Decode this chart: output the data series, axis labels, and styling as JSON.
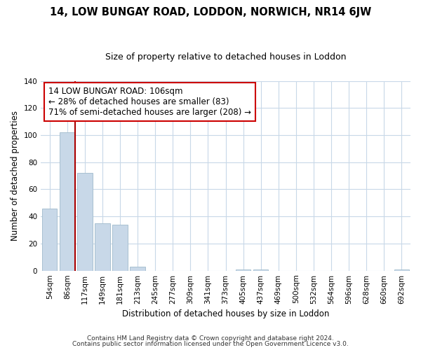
{
  "title": "14, LOW BUNGAY ROAD, LODDON, NORWICH, NR14 6JW",
  "subtitle": "Size of property relative to detached houses in Loddon",
  "xlabel": "Distribution of detached houses by size in Loddon",
  "ylabel": "Number of detached properties",
  "bar_labels": [
    "54sqm",
    "86sqm",
    "117sqm",
    "149sqm",
    "181sqm",
    "213sqm",
    "245sqm",
    "277sqm",
    "309sqm",
    "341sqm",
    "373sqm",
    "405sqm",
    "437sqm",
    "469sqm",
    "500sqm",
    "532sqm",
    "564sqm",
    "596sqm",
    "628sqm",
    "660sqm",
    "692sqm"
  ],
  "bar_values": [
    46,
    102,
    72,
    35,
    34,
    3,
    0,
    0,
    0,
    0,
    0,
    1,
    1,
    0,
    0,
    0,
    0,
    0,
    0,
    0,
    1
  ],
  "bar_color": "#c8d8e8",
  "bar_edge_color": "#a8c0d0",
  "marker_color": "#aa0000",
  "annotation_title": "14 LOW BUNGAY ROAD: 106sqm",
  "annotation_line1": "← 28% of detached houses are smaller (83)",
  "annotation_line2": "71% of semi-detached houses are larger (208) →",
  "annotation_box_color": "#ffffff",
  "annotation_box_edge": "#cc0000",
  "ylim": [
    0,
    140
  ],
  "yticks": [
    0,
    20,
    40,
    60,
    80,
    100,
    120,
    140
  ],
  "footer1": "Contains HM Land Registry data © Crown copyright and database right 2024.",
  "footer2": "Contains public sector information licensed under the Open Government Licence v3.0.",
  "bg_color": "#ffffff",
  "grid_color": "#c8d8e8",
  "title_fontsize": 10.5,
  "subtitle_fontsize": 9,
  "axis_label_fontsize": 8.5,
  "tick_fontsize": 7.5,
  "annotation_fontsize": 8.5,
  "footer_fontsize": 6.5
}
